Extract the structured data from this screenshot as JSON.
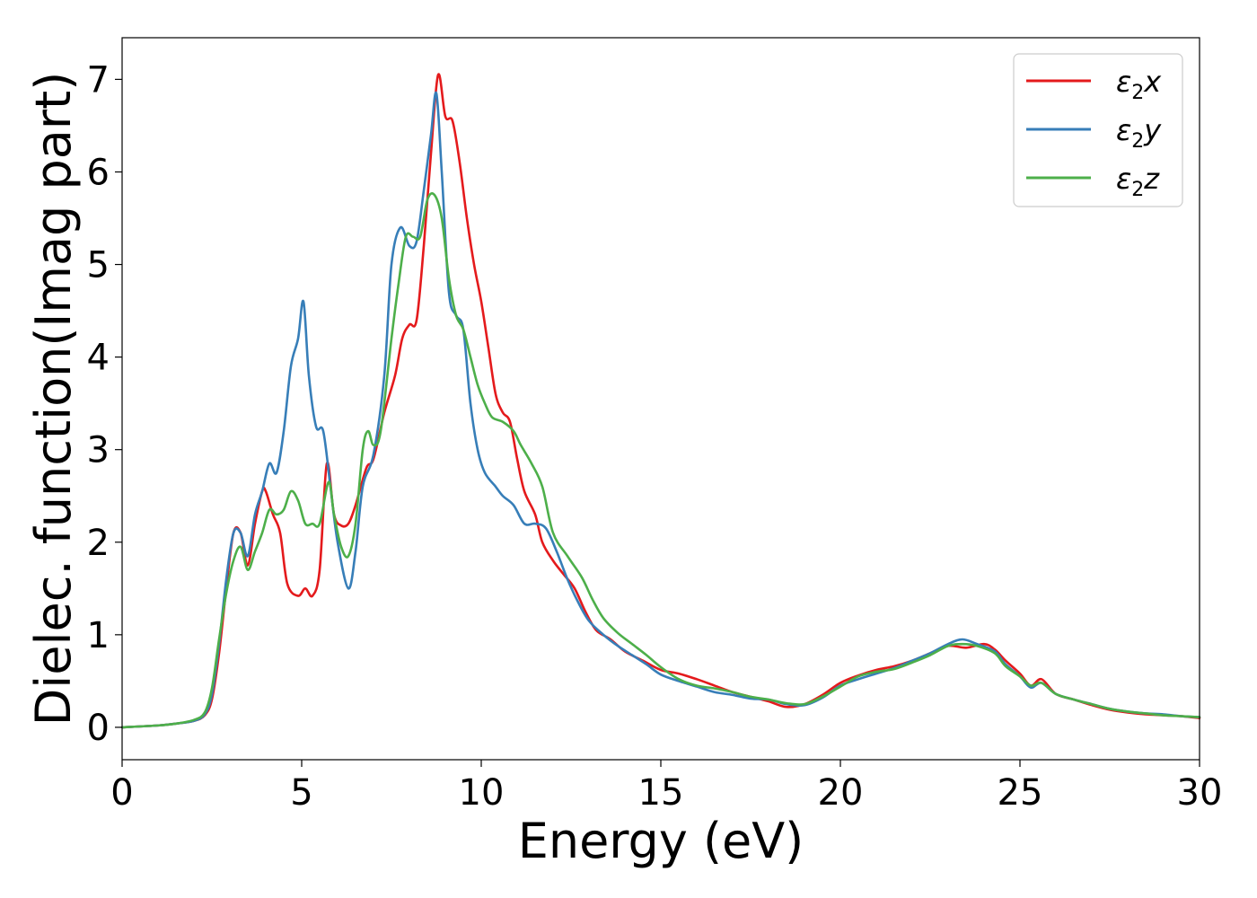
{
  "chart_data": {
    "type": "line",
    "xlabel": "Energy (eV)",
    "ylabel": "Dielec. function(Imag part)",
    "xlim": [
      0,
      30
    ],
    "ylim": [
      -0.35,
      7.45
    ],
    "xticks": [
      "0",
      "5",
      "10",
      "15",
      "20",
      "25",
      "30"
    ],
    "xtick_values": [
      0,
      5,
      10,
      15,
      20,
      25,
      30
    ],
    "yticks": [
      "0",
      "1",
      "2",
      "3",
      "4",
      "5",
      "6",
      "7"
    ],
    "ytick_values": [
      0,
      1,
      2,
      3,
      4,
      5,
      6,
      7
    ],
    "grid": false,
    "legend_position": "top-right",
    "series": [
      {
        "name": "ε2x",
        "label_base": "ε",
        "label_sub": "2",
        "label_axis": "x",
        "color": "#e41a1c",
        "points": [
          [
            0,
            0
          ],
          [
            1,
            0.02
          ],
          [
            1.5,
            0.04
          ],
          [
            2,
            0.07
          ],
          [
            2.3,
            0.13
          ],
          [
            2.5,
            0.3
          ],
          [
            2.7,
            0.8
          ],
          [
            2.9,
            1.5
          ],
          [
            3.1,
            2.1
          ],
          [
            3.3,
            2.1
          ],
          [
            3.5,
            1.75
          ],
          [
            3.7,
            2.2
          ],
          [
            3.9,
            2.55
          ],
          [
            4.0,
            2.55
          ],
          [
            4.2,
            2.3
          ],
          [
            4.4,
            2.1
          ],
          [
            4.6,
            1.55
          ],
          [
            4.9,
            1.42
          ],
          [
            5.1,
            1.5
          ],
          [
            5.3,
            1.42
          ],
          [
            5.5,
            1.7
          ],
          [
            5.7,
            2.85
          ],
          [
            5.9,
            2.3
          ],
          [
            6.1,
            2.18
          ],
          [
            6.3,
            2.2
          ],
          [
            6.5,
            2.4
          ],
          [
            6.8,
            2.8
          ],
          [
            7.0,
            2.9
          ],
          [
            7.3,
            3.4
          ],
          [
            7.6,
            3.8
          ],
          [
            7.8,
            4.2
          ],
          [
            8.0,
            4.35
          ],
          [
            8.2,
            4.4
          ],
          [
            8.4,
            5.2
          ],
          [
            8.6,
            6.2
          ],
          [
            8.8,
            7.05
          ],
          [
            9.0,
            6.6
          ],
          [
            9.2,
            6.55
          ],
          [
            9.4,
            6.1
          ],
          [
            9.6,
            5.5
          ],
          [
            9.8,
            5.0
          ],
          [
            10.0,
            4.6
          ],
          [
            10.2,
            4.1
          ],
          [
            10.4,
            3.6
          ],
          [
            10.6,
            3.4
          ],
          [
            10.8,
            3.3
          ],
          [
            11.0,
            2.9
          ],
          [
            11.2,
            2.55
          ],
          [
            11.5,
            2.3
          ],
          [
            11.7,
            2.0
          ],
          [
            12.0,
            1.8
          ],
          [
            12.3,
            1.65
          ],
          [
            12.6,
            1.5
          ],
          [
            12.9,
            1.25
          ],
          [
            13.2,
            1.05
          ],
          [
            13.6,
            0.95
          ],
          [
            14.0,
            0.82
          ],
          [
            14.5,
            0.72
          ],
          [
            15.0,
            0.62
          ],
          [
            15.5,
            0.58
          ],
          [
            16.0,
            0.52
          ],
          [
            16.5,
            0.45
          ],
          [
            17.0,
            0.38
          ],
          [
            17.5,
            0.33
          ],
          [
            18.0,
            0.28
          ],
          [
            18.5,
            0.22
          ],
          [
            19.0,
            0.25
          ],
          [
            19.5,
            0.35
          ],
          [
            20.0,
            0.48
          ],
          [
            20.5,
            0.56
          ],
          [
            21.0,
            0.62
          ],
          [
            21.5,
            0.66
          ],
          [
            22.0,
            0.72
          ],
          [
            22.5,
            0.8
          ],
          [
            23.0,
            0.88
          ],
          [
            23.5,
            0.86
          ],
          [
            24.0,
            0.9
          ],
          [
            24.3,
            0.84
          ],
          [
            24.6,
            0.72
          ],
          [
            25.0,
            0.58
          ],
          [
            25.3,
            0.45
          ],
          [
            25.6,
            0.52
          ],
          [
            26.0,
            0.36
          ],
          [
            26.5,
            0.3
          ],
          [
            27.0,
            0.24
          ],
          [
            27.5,
            0.19
          ],
          [
            28.0,
            0.16
          ],
          [
            28.5,
            0.14
          ],
          [
            29.0,
            0.13
          ],
          [
            29.5,
            0.12
          ],
          [
            30,
            0.1
          ]
        ]
      },
      {
        "name": "ε2y",
        "label_base": "ε",
        "label_sub": "2",
        "label_axis": "y",
        "color": "#377eb8",
        "points": [
          [
            0,
            0
          ],
          [
            1,
            0.02
          ],
          [
            1.5,
            0.04
          ],
          [
            2,
            0.07
          ],
          [
            2.3,
            0.14
          ],
          [
            2.5,
            0.35
          ],
          [
            2.7,
            0.9
          ],
          [
            2.9,
            1.6
          ],
          [
            3.1,
            2.1
          ],
          [
            3.3,
            2.1
          ],
          [
            3.5,
            1.85
          ],
          [
            3.7,
            2.3
          ],
          [
            3.9,
            2.55
          ],
          [
            4.1,
            2.85
          ],
          [
            4.3,
            2.75
          ],
          [
            4.5,
            3.2
          ],
          [
            4.7,
            3.9
          ],
          [
            4.9,
            4.2
          ],
          [
            5.05,
            4.6
          ],
          [
            5.2,
            3.8
          ],
          [
            5.4,
            3.25
          ],
          [
            5.6,
            3.2
          ],
          [
            5.8,
            2.6
          ],
          [
            6.0,
            2.0
          ],
          [
            6.3,
            1.5
          ],
          [
            6.5,
            1.9
          ],
          [
            6.7,
            2.6
          ],
          [
            7.0,
            2.95
          ],
          [
            7.3,
            3.8
          ],
          [
            7.5,
            5.0
          ],
          [
            7.75,
            5.4
          ],
          [
            8.0,
            5.2
          ],
          [
            8.2,
            5.25
          ],
          [
            8.4,
            5.8
          ],
          [
            8.6,
            6.4
          ],
          [
            8.75,
            6.85
          ],
          [
            8.9,
            6.0
          ],
          [
            9.1,
            4.7
          ],
          [
            9.3,
            4.45
          ],
          [
            9.5,
            4.3
          ],
          [
            9.7,
            3.5
          ],
          [
            9.9,
            3.0
          ],
          [
            10.1,
            2.75
          ],
          [
            10.4,
            2.6
          ],
          [
            10.6,
            2.5
          ],
          [
            10.9,
            2.4
          ],
          [
            11.2,
            2.2
          ],
          [
            11.5,
            2.2
          ],
          [
            11.8,
            2.15
          ],
          [
            12.1,
            1.9
          ],
          [
            12.4,
            1.6
          ],
          [
            12.7,
            1.35
          ],
          [
            13.0,
            1.15
          ],
          [
            13.4,
            1.0
          ],
          [
            13.8,
            0.88
          ],
          [
            14.2,
            0.78
          ],
          [
            14.6,
            0.68
          ],
          [
            15.0,
            0.57
          ],
          [
            15.5,
            0.5
          ],
          [
            16.0,
            0.44
          ],
          [
            16.5,
            0.38
          ],
          [
            17.0,
            0.35
          ],
          [
            17.5,
            0.31
          ],
          [
            18.0,
            0.3
          ],
          [
            18.5,
            0.25
          ],
          [
            19.0,
            0.24
          ],
          [
            19.5,
            0.32
          ],
          [
            20.0,
            0.45
          ],
          [
            20.5,
            0.52
          ],
          [
            21.0,
            0.58
          ],
          [
            21.5,
            0.64
          ],
          [
            22.0,
            0.72
          ],
          [
            22.5,
            0.8
          ],
          [
            23.0,
            0.9
          ],
          [
            23.4,
            0.95
          ],
          [
            23.8,
            0.9
          ],
          [
            24.3,
            0.82
          ],
          [
            24.6,
            0.68
          ],
          [
            25.0,
            0.55
          ],
          [
            25.3,
            0.43
          ],
          [
            25.6,
            0.48
          ],
          [
            26.0,
            0.36
          ],
          [
            26.5,
            0.3
          ],
          [
            27.0,
            0.25
          ],
          [
            27.5,
            0.2
          ],
          [
            28.0,
            0.17
          ],
          [
            28.5,
            0.15
          ],
          [
            29.0,
            0.14
          ],
          [
            29.5,
            0.12
          ],
          [
            30,
            0.11
          ]
        ]
      },
      {
        "name": "ε2z",
        "label_base": "ε",
        "label_sub": "2",
        "label_axis": "z",
        "color": "#4daf4a",
        "points": [
          [
            0,
            0
          ],
          [
            1,
            0.02
          ],
          [
            1.5,
            0.04
          ],
          [
            2,
            0.08
          ],
          [
            2.3,
            0.16
          ],
          [
            2.5,
            0.42
          ],
          [
            2.7,
            0.95
          ],
          [
            2.9,
            1.45
          ],
          [
            3.1,
            1.8
          ],
          [
            3.3,
            1.95
          ],
          [
            3.5,
            1.7
          ],
          [
            3.7,
            1.9
          ],
          [
            3.9,
            2.1
          ],
          [
            4.1,
            2.35
          ],
          [
            4.3,
            2.3
          ],
          [
            4.5,
            2.35
          ],
          [
            4.7,
            2.55
          ],
          [
            4.9,
            2.45
          ],
          [
            5.1,
            2.2
          ],
          [
            5.3,
            2.2
          ],
          [
            5.5,
            2.2
          ],
          [
            5.75,
            2.65
          ],
          [
            5.9,
            2.3
          ],
          [
            6.1,
            1.95
          ],
          [
            6.3,
            1.85
          ],
          [
            6.5,
            2.2
          ],
          [
            6.7,
            3.0
          ],
          [
            6.85,
            3.2
          ],
          [
            7.0,
            3.05
          ],
          [
            7.2,
            3.2
          ],
          [
            7.5,
            4.2
          ],
          [
            7.7,
            4.8
          ],
          [
            7.9,
            5.3
          ],
          [
            8.1,
            5.3
          ],
          [
            8.3,
            5.3
          ],
          [
            8.5,
            5.7
          ],
          [
            8.7,
            5.75
          ],
          [
            8.9,
            5.5
          ],
          [
            9.1,
            4.85
          ],
          [
            9.3,
            4.45
          ],
          [
            9.5,
            4.3
          ],
          [
            9.7,
            4.0
          ],
          [
            9.9,
            3.7
          ],
          [
            10.1,
            3.5
          ],
          [
            10.3,
            3.35
          ],
          [
            10.6,
            3.3
          ],
          [
            10.9,
            3.2
          ],
          [
            11.1,
            3.05
          ],
          [
            11.4,
            2.85
          ],
          [
            11.7,
            2.6
          ],
          [
            12.0,
            2.1
          ],
          [
            12.4,
            1.85
          ],
          [
            12.8,
            1.62
          ],
          [
            13.1,
            1.38
          ],
          [
            13.4,
            1.18
          ],
          [
            13.8,
            1.02
          ],
          [
            14.2,
            0.9
          ],
          [
            14.6,
            0.78
          ],
          [
            15.0,
            0.65
          ],
          [
            15.5,
            0.52
          ],
          [
            16.0,
            0.45
          ],
          [
            16.5,
            0.42
          ],
          [
            17.0,
            0.38
          ],
          [
            17.5,
            0.33
          ],
          [
            18.0,
            0.3
          ],
          [
            18.5,
            0.26
          ],
          [
            19.0,
            0.25
          ],
          [
            19.5,
            0.33
          ],
          [
            20.0,
            0.44
          ],
          [
            20.5,
            0.55
          ],
          [
            21.0,
            0.6
          ],
          [
            21.5,
            0.63
          ],
          [
            22.0,
            0.7
          ],
          [
            22.5,
            0.78
          ],
          [
            23.0,
            0.88
          ],
          [
            23.4,
            0.9
          ],
          [
            23.8,
            0.88
          ],
          [
            24.3,
            0.8
          ],
          [
            24.6,
            0.66
          ],
          [
            25.0,
            0.55
          ],
          [
            25.3,
            0.45
          ],
          [
            25.6,
            0.48
          ],
          [
            26.0,
            0.36
          ],
          [
            26.5,
            0.3
          ],
          [
            27.0,
            0.25
          ],
          [
            27.5,
            0.2
          ],
          [
            28.0,
            0.17
          ],
          [
            28.5,
            0.15
          ],
          [
            29.0,
            0.13
          ],
          [
            29.5,
            0.12
          ],
          [
            30,
            0.11
          ]
        ]
      }
    ]
  }
}
